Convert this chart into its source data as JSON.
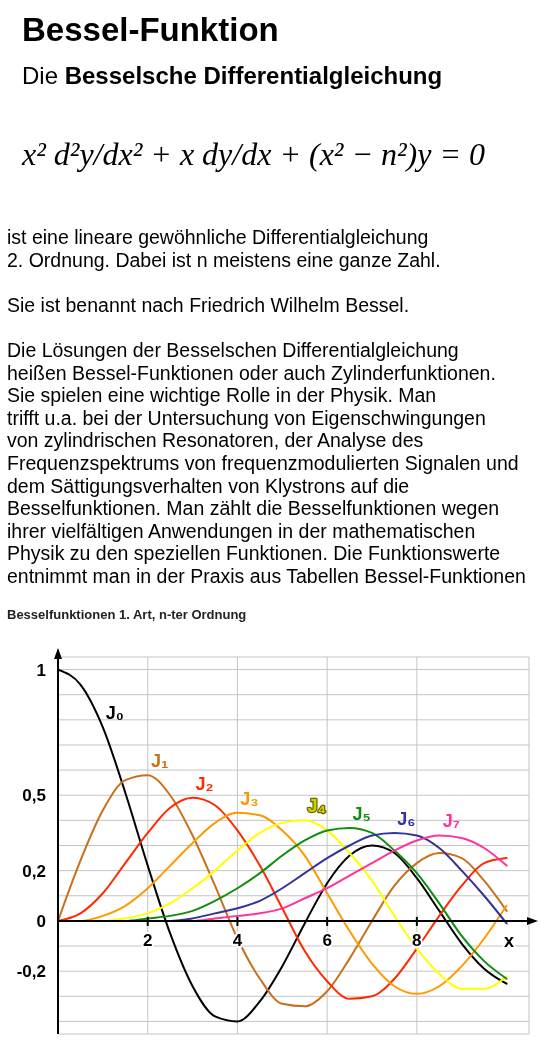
{
  "chart_data": {
    "type": "line",
    "title": "Bessel-Funktion",
    "subtitle": "Die Besselsche Differentialgleichung",
    "annotations": [
      "x² d²y/dx² + x dy/dx + (x² − n²)y = 0",
      "ist eine lineare gewöhnliche Differentialgleichung\n2. Ordnung. Dabei ist n meistens eine ganze Zahl.",
      "Sie ist benannt nach Friedrich Wilhelm Bessel.",
      "Die Lösungen der Besselschen Differentialgleichung\nheißen Bessel-Funktionen oder auch Zylinderfunktionen.\nSie spielen eine wichtige Rolle in der Physik. Man\ntrifft u.a. bei der Untersuchung von Eigenschwingungen\nvon zylindrischen Resonatoren, der Analyse des\nFrequenzspektrums von frequenzmodulierten Signalen und\ndem Sättigungsverhalten von Klystrons auf die\nBesselfunktionen. Man zählt die Besselfunktionen wegen\nihrer vielfältigen Anwendungen in der mathematischen\nPhysik zu den speziellen Funktionen. Die Funktionswerte\nentnimmt man in der Praxis aus Tabellen Bessel-Funktionen",
      "Besselfunktionen 1. Art, n-ter Ordnung"
    ],
    "xlabel": "x",
    "x": [
      0,
      0.5,
      1,
      1.5,
      2,
      2.5,
      3,
      3.5,
      4,
      4.5,
      5,
      5.5,
      6,
      6.5,
      7,
      7.5,
      8,
      8.5,
      9,
      9.5,
      10
    ],
    "series": [
      {
        "name": "J₀",
        "color": "#000000",
        "values": [
          1,
          0.94,
          0.77,
          0.51,
          0.22,
          -0.05,
          -0.26,
          -0.38,
          -0.4,
          -0.32,
          -0.18,
          -0.01,
          0.15,
          0.26,
          0.3,
          0.27,
          0.17,
          0.04,
          -0.09,
          -0.19,
          -0.25
        ]
      },
      {
        "name": "J₁",
        "color": "#c8701c",
        "values": [
          0,
          0.24,
          0.44,
          0.56,
          0.58,
          0.5,
          0.34,
          0.14,
          -0.07,
          -0.23,
          -0.33,
          -0.34,
          -0.28,
          -0.15,
          0,
          0.14,
          0.23,
          0.27,
          0.25,
          0.16,
          0.04
        ]
      },
      {
        "name": "J₂",
        "color": "#ff2a00",
        "values": [
          0,
          0.03,
          0.11,
          0.23,
          0.35,
          0.45,
          0.49,
          0.46,
          0.36,
          0.22,
          0.05,
          -0.12,
          -0.24,
          -0.31,
          -0.3,
          -0.23,
          -0.11,
          0.02,
          0.14,
          0.23,
          0.25
        ]
      },
      {
        "name": "J₃",
        "color": "#ff9900",
        "values": [
          0,
          0,
          0.02,
          0.06,
          0.13,
          0.22,
          0.31,
          0.39,
          0.43,
          0.42,
          0.36,
          0.26,
          0.11,
          -0.04,
          -0.17,
          -0.26,
          -0.29,
          -0.26,
          -0.18,
          -0.07,
          0.06
        ]
      },
      {
        "name": "J₄",
        "color": "#ffff00",
        "values": [
          0,
          0,
          0,
          0.01,
          0.03,
          0.07,
          0.13,
          0.2,
          0.28,
          0.35,
          0.39,
          0.4,
          0.36,
          0.27,
          0.16,
          0.02,
          -0.11,
          -0.21,
          -0.27,
          -0.27,
          -0.22
        ]
      },
      {
        "name": "J₅",
        "color": "#108c10",
        "values": [
          null,
          null,
          0,
          0,
          0.01,
          0.02,
          0.04,
          0.08,
          0.13,
          0.19,
          0.26,
          0.32,
          0.36,
          0.37,
          0.35,
          0.28,
          0.19,
          0.07,
          -0.06,
          -0.16,
          -0.23
        ]
      },
      {
        "name": "J₆",
        "color": "#333399",
        "values": [
          null,
          null,
          null,
          null,
          0,
          0,
          0.01,
          0.03,
          0.05,
          0.08,
          0.13,
          0.19,
          0.25,
          0.3,
          0.34,
          0.35,
          0.34,
          0.29,
          0.2,
          0.1,
          -0.01
        ]
      },
      {
        "name": "J₇",
        "color": "#ff3399",
        "values": [
          null,
          null,
          null,
          null,
          null,
          0,
          0,
          0.01,
          0.02,
          0.03,
          0.05,
          0.09,
          0.13,
          0.18,
          0.23,
          0.28,
          0.32,
          0.34,
          0.33,
          0.29,
          0.22
        ]
      }
    ],
    "xlim": [
      0,
      10.5
    ],
    "ylim": [
      -0.45,
      1.05
    ],
    "xticks": [
      2,
      4,
      6,
      8
    ],
    "yticks": [
      {
        "value": -0.4,
        "label": null
      },
      {
        "value": -0.3,
        "label": null
      },
      {
        "value": -0.2,
        "label": "-0,2"
      },
      {
        "value": -0.1,
        "label": null
      },
      0,
      {
        "value": 0.1,
        "label": null
      },
      {
        "value": 0.2,
        "label": "0,2"
      },
      {
        "value": 0.3,
        "label": null
      },
      {
        "value": 0.4,
        "label": null
      },
      {
        "value": 0.5,
        "label": "0,5"
      },
      {
        "value": 0.6,
        "label": null
      },
      {
        "value": 0.7,
        "label": null
      },
      {
        "value": 0.8,
        "label": null
      },
      {
        "value": 0.9,
        "label": null
      },
      1
    ],
    "grid": true
  }
}
